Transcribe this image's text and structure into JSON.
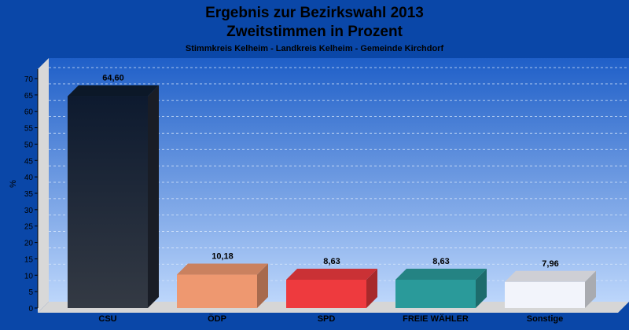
{
  "chart_data": {
    "type": "bar",
    "title": "Ergebnis zur Bezirkswahl 2013",
    "title_line2": "Zweitstimmen in Prozent",
    "subtitle": "Stimmkreis Kelheim - Landkreis Kelheim - Gemeinde Kirchdorf",
    "ylabel": "%",
    "xlabel": "",
    "ylim": [
      0,
      70
    ],
    "ytick_step": 5,
    "yticks": [
      "0",
      "5",
      "10",
      "15",
      "20",
      "25",
      "30",
      "35",
      "40",
      "45",
      "50",
      "55",
      "60",
      "65",
      "70"
    ],
    "grid": true,
    "categories": [
      "CSU",
      "ÖDP",
      "SPD",
      "FREIE WÄHLER",
      "Sonstige"
    ],
    "values": [
      64.6,
      10.18,
      8.63,
      8.63,
      7.96
    ],
    "value_labels": [
      "64,60",
      "10,18",
      "8,63",
      "8,63",
      "7,96"
    ],
    "colors": [
      "#232a36",
      "#ee9870",
      "#ee3a3e",
      "#2a9a9a",
      "#f2f4fb"
    ]
  },
  "colors": {
    "background": "#0a47a8",
    "plot_top": "#1f5fc8",
    "plot_bottom": "#b8d4fb",
    "wall": "#dcdcdc"
  }
}
